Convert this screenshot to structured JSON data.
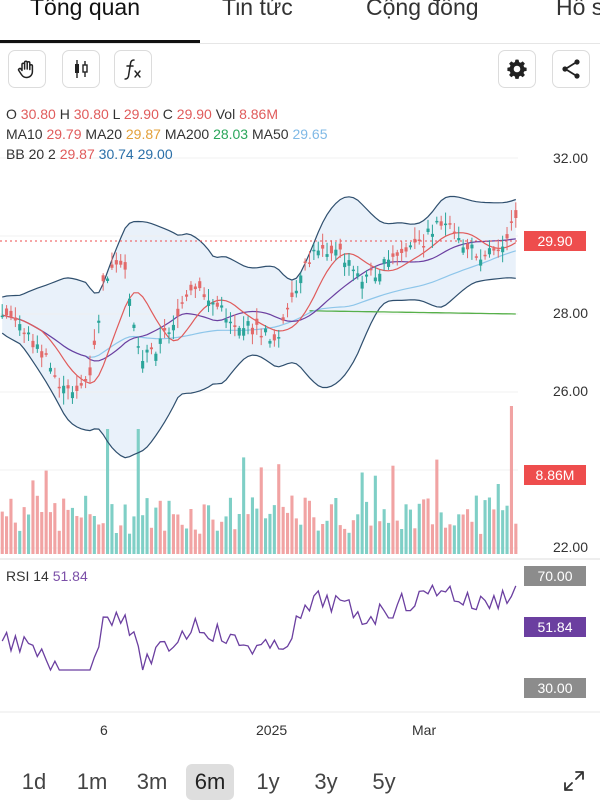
{
  "tabs": [
    {
      "label": "Tổng quan",
      "active": true
    },
    {
      "label": "Tin tức",
      "active": false
    },
    {
      "label": "Cộng đồng",
      "active": false
    },
    {
      "label": "Hồ s",
      "active": false
    }
  ],
  "toolbar": {
    "icons": [
      "hand-icon",
      "candlestick-icon",
      "function-icon",
      "gear-icon",
      "share-icon"
    ]
  },
  "ohlc": {
    "o_label": "O",
    "o": "30.80",
    "h_label": "H",
    "h": "30.80",
    "l_label": "L",
    "l": "29.90",
    "c_label": "C",
    "c": "29.90",
    "vol_label": "Vol",
    "vol": "8.86M"
  },
  "ma": {
    "ma10_label": "MA10",
    "ma10": "29.79",
    "ma20_label": "MA20",
    "ma20": "29.87",
    "ma200_label": "MA200",
    "ma200": "28.03",
    "ma50_label": "MA50",
    "ma50": "29.65"
  },
  "bb": {
    "label": "BB 20 2",
    "mid": "29.87",
    "upper": "30.74",
    "lower": "29.00"
  },
  "price_axis": [
    "32.00",
    "28.00",
    "26.00",
    "22.00"
  ],
  "current_price_tag": "29.90",
  "volume_tag": "8.86M",
  "rsi": {
    "label": "RSI 14",
    "value": "51.84",
    "upper_tag": "70.00",
    "value_tag": "51.84",
    "lower_tag": "30.00"
  },
  "x_axis": [
    "6",
    "2025",
    "Mar"
  ],
  "ranges": [
    {
      "label": "1d",
      "active": false
    },
    {
      "label": "1m",
      "active": false
    },
    {
      "label": "3m",
      "active": false
    },
    {
      "label": "6m",
      "active": true
    },
    {
      "label": "1y",
      "active": false
    },
    {
      "label": "3y",
      "active": false
    },
    {
      "label": "5y",
      "active": false
    }
  ],
  "colors": {
    "up": "#2ba59a",
    "down": "#e36a6a",
    "ma10": "#e05b5b",
    "ma20": "#6b3fa0",
    "ma50": "#8ec6ea",
    "ma200": "#57b04a",
    "bb": "#2f4f6e",
    "bb_fill": "#e7f0f9",
    "price_tag": "#ee4d4d",
    "rsi": "#6b3fa0",
    "grey_tag": "#8c8c8c"
  }
}
